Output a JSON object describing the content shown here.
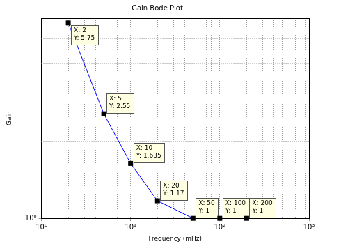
{
  "chart_data": {
    "type": "line",
    "title": "Gain Bode Plot",
    "x_label": "Frequency (mHz)",
    "y_label": "Gain",
    "x": [
      2,
      5,
      10,
      20,
      50,
      100,
      200
    ],
    "values": [
      5.75,
      2.55,
      1.635,
      1.17,
      1,
      1,
      1
    ],
    "color": "#0000ff",
    "log": true,
    "grid": true,
    "xlim": [
      1,
      1000
    ],
    "xticks": [
      {
        "value": 1,
        "label": "10⁰"
      },
      {
        "value": 10,
        "label": "10¹"
      },
      {
        "value": 100,
        "label": "10²"
      },
      {
        "value": 1000,
        "label": "10³"
      }
    ],
    "ylim": [
      1,
      6
    ],
    "yticks": [
      {
        "value": 1,
        "label": "10⁰"
      }
    ],
    "annotations": [
      {
        "x": 2,
        "y": 5.75,
        "text": [
          "X: 2",
          "Y: 5.75"
        ]
      },
      {
        "x": 5,
        "y": 2.55,
        "text": [
          "X: 5",
          "Y: 2.55"
        ]
      },
      {
        "x": 10,
        "y": 1.635,
        "text": [
          "X: 10",
          "Y: 1.635"
        ]
      },
      {
        "x": 20,
        "y": 1.17,
        "text": [
          "X: 20",
          "Y: 1.17"
        ]
      },
      {
        "x": 50,
        "y": 1,
        "text": [
          "X: 50",
          "Y: 1"
        ]
      },
      {
        "x": 100,
        "y": 1,
        "text": [
          "X: 100",
          "Y: 1"
        ]
      },
      {
        "x": 200,
        "y": 1,
        "text": [
          "X: 200",
          "Y: 1"
        ]
      }
    ]
  }
}
